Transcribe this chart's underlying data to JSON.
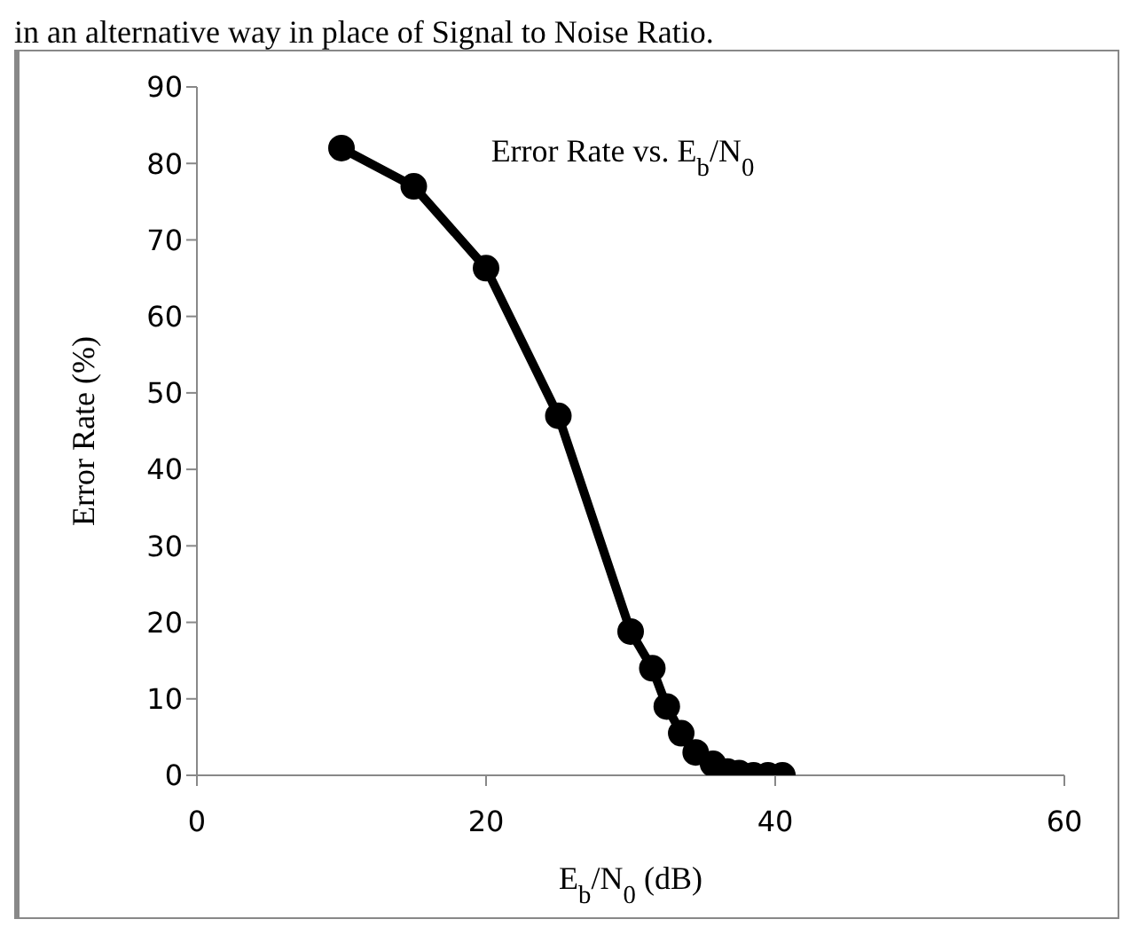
{
  "chart_data": {
    "type": "line",
    "title": "Error Rate vs. E$_{b}$/N$_{0}$",
    "xlabel": "E$_{b}$/N$_{0}$ (dB)",
    "ylabel": "Error Rate (%)",
    "annotations": [
      "in an alternative way in place of Signal to Noise Ratio."
    ],
    "x": [
      10,
      15,
      20,
      25,
      30,
      31.5,
      32.5,
      33.5,
      34.5,
      35.7,
      36.7,
      37.5,
      38.5,
      39.5,
      40.5
    ],
    "series": [
      {
        "color": "#000000",
        "values": [
          82,
          77,
          66.3,
          47,
          18.8,
          14,
          9,
          5.5,
          3,
          1.5,
          0.5,
          0.3,
          0,
          0,
          0
        ]
      }
    ],
    "xlim": [
      0,
      60
    ],
    "xticks": [
      0,
      20,
      40,
      60
    ],
    "ylim": [
      0,
      90
    ],
    "yticks": [
      0,
      10,
      20,
      30,
      40,
      50,
      60,
      70,
      80,
      90
    ],
    "grid": false,
    "legend": false,
    "marker": "circle",
    "line_style": "solid"
  }
}
